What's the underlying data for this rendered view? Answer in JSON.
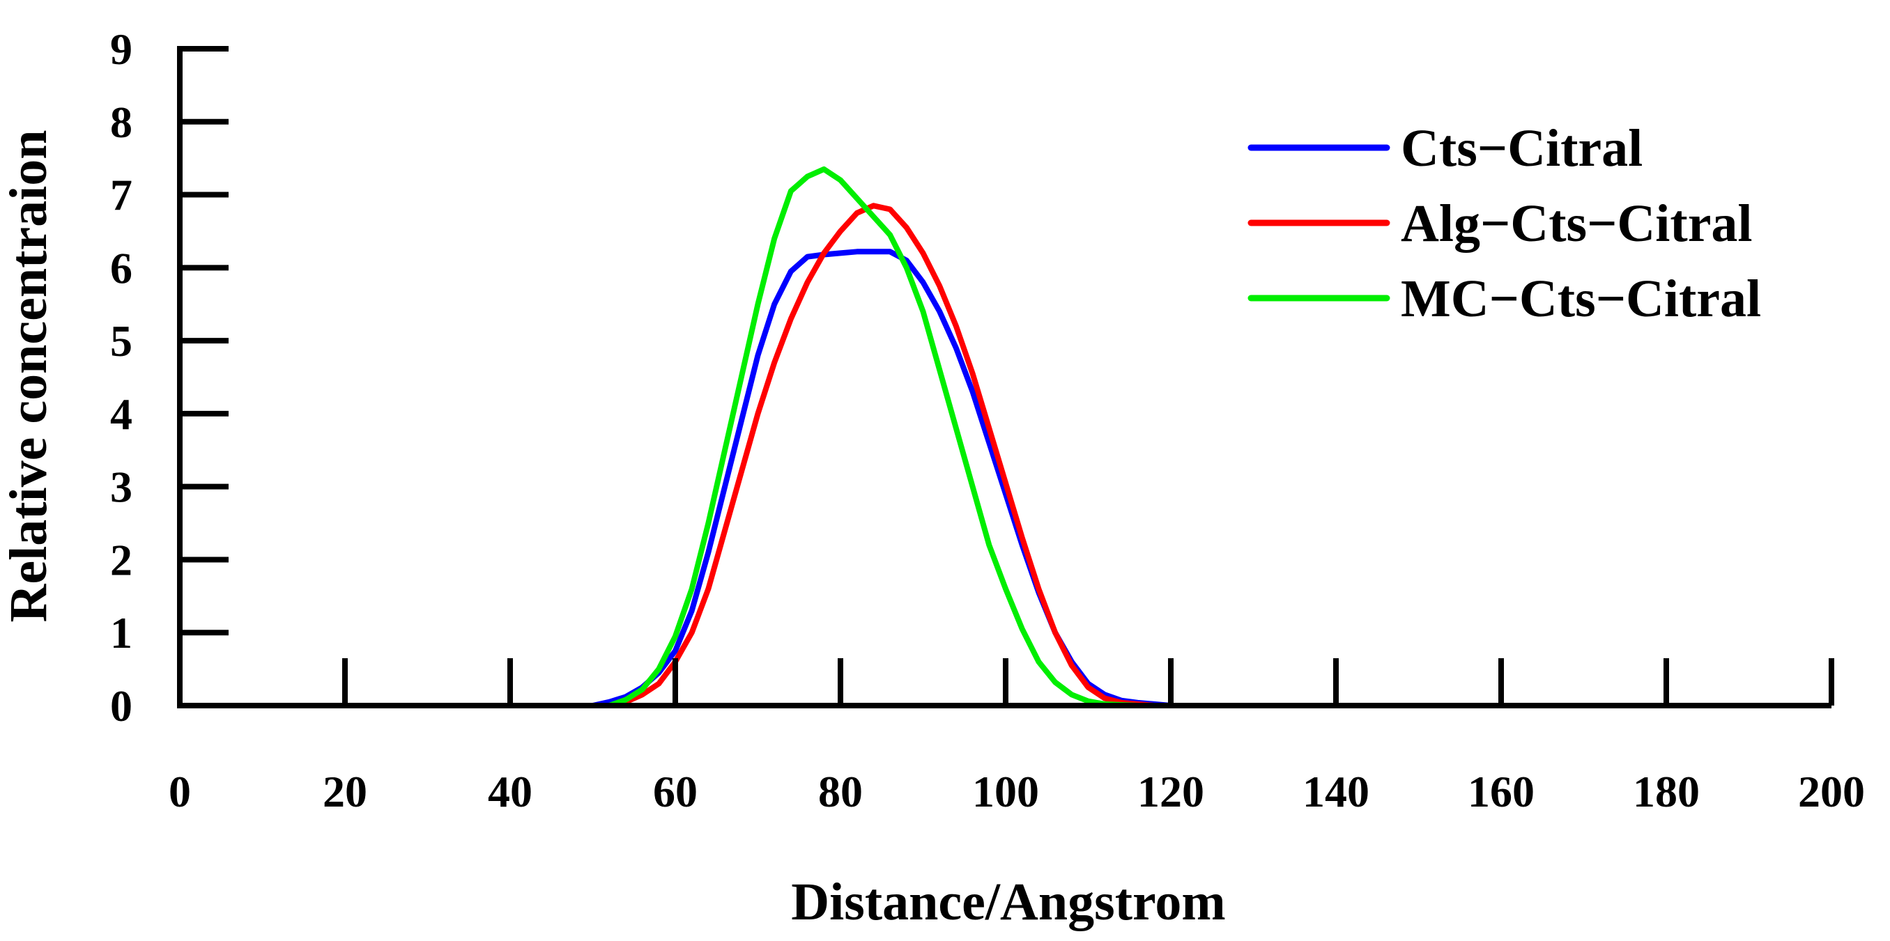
{
  "chart_data": {
    "type": "line",
    "title": "",
    "xlabel": "Distance/Angstrom",
    "ylabel": "Relative concentraion",
    "xlim": [
      0,
      200
    ],
    "ylim": [
      0,
      9
    ],
    "xticks": [
      0,
      20,
      40,
      60,
      80,
      100,
      120,
      140,
      160,
      180,
      200
    ],
    "yticks": [
      0,
      1,
      2,
      3,
      4,
      5,
      6,
      7,
      8,
      9
    ],
    "xtick_labels": [
      "0",
      "20",
      "40",
      "60",
      "80",
      "100",
      "120",
      "140",
      "160",
      "180",
      "200"
    ],
    "ytick_labels": [
      "0",
      "1",
      "2",
      "3",
      "4",
      "5",
      "6",
      "7",
      "8",
      "9"
    ],
    "grid": false,
    "legend_position": "top-right",
    "series": [
      {
        "name": "Cts−Citral",
        "color": "#0000ff",
        "x": [
          50,
          52,
          54,
          56,
          58,
          60,
          62,
          64,
          66,
          68,
          70,
          72,
          74,
          76,
          78,
          80,
          82,
          84,
          86,
          88,
          90,
          92,
          94,
          96,
          98,
          100,
          102,
          104,
          106,
          108,
          110,
          112,
          114,
          116,
          118,
          120
        ],
        "y": [
          0.0,
          0.05,
          0.12,
          0.25,
          0.45,
          0.75,
          1.3,
          2.1,
          3.0,
          3.9,
          4.8,
          5.5,
          5.95,
          6.15,
          6.18,
          6.2,
          6.22,
          6.22,
          6.22,
          6.1,
          5.8,
          5.4,
          4.9,
          4.3,
          3.6,
          2.9,
          2.2,
          1.55,
          1.0,
          0.6,
          0.3,
          0.15,
          0.07,
          0.04,
          0.02,
          0.0
        ]
      },
      {
        "name": "Alg−Cts−Citral",
        "color": "#ff0000",
        "x": [
          52,
          54,
          56,
          58,
          60,
          62,
          64,
          66,
          68,
          70,
          72,
          74,
          76,
          78,
          80,
          82,
          84,
          86,
          88,
          90,
          92,
          94,
          96,
          98,
          100,
          102,
          104,
          106,
          108,
          110,
          112,
          114,
          116,
          118
        ],
        "y": [
          0.0,
          0.05,
          0.15,
          0.3,
          0.6,
          1.0,
          1.6,
          2.4,
          3.2,
          4.0,
          4.7,
          5.3,
          5.8,
          6.2,
          6.5,
          6.75,
          6.85,
          6.8,
          6.55,
          6.2,
          5.75,
          5.2,
          4.55,
          3.8,
          3.05,
          2.3,
          1.6,
          1.0,
          0.55,
          0.25,
          0.1,
          0.04,
          0.02,
          0.0
        ]
      },
      {
        "name": "MC−Cts−Citral",
        "color": "#00ee00",
        "x": [
          52,
          54,
          56,
          58,
          60,
          62,
          64,
          66,
          68,
          70,
          72,
          74,
          76,
          78,
          80,
          82,
          84,
          86,
          88,
          90,
          92,
          94,
          96,
          98,
          100,
          102,
          104,
          106,
          108,
          110,
          112,
          114,
          116
        ],
        "y": [
          0.0,
          0.08,
          0.22,
          0.5,
          0.95,
          1.6,
          2.5,
          3.5,
          4.5,
          5.5,
          6.4,
          7.05,
          7.25,
          7.35,
          7.2,
          6.95,
          6.7,
          6.45,
          6.0,
          5.4,
          4.6,
          3.8,
          3.0,
          2.2,
          1.6,
          1.05,
          0.6,
          0.32,
          0.15,
          0.06,
          0.02,
          0.01,
          0.0
        ]
      }
    ]
  }
}
